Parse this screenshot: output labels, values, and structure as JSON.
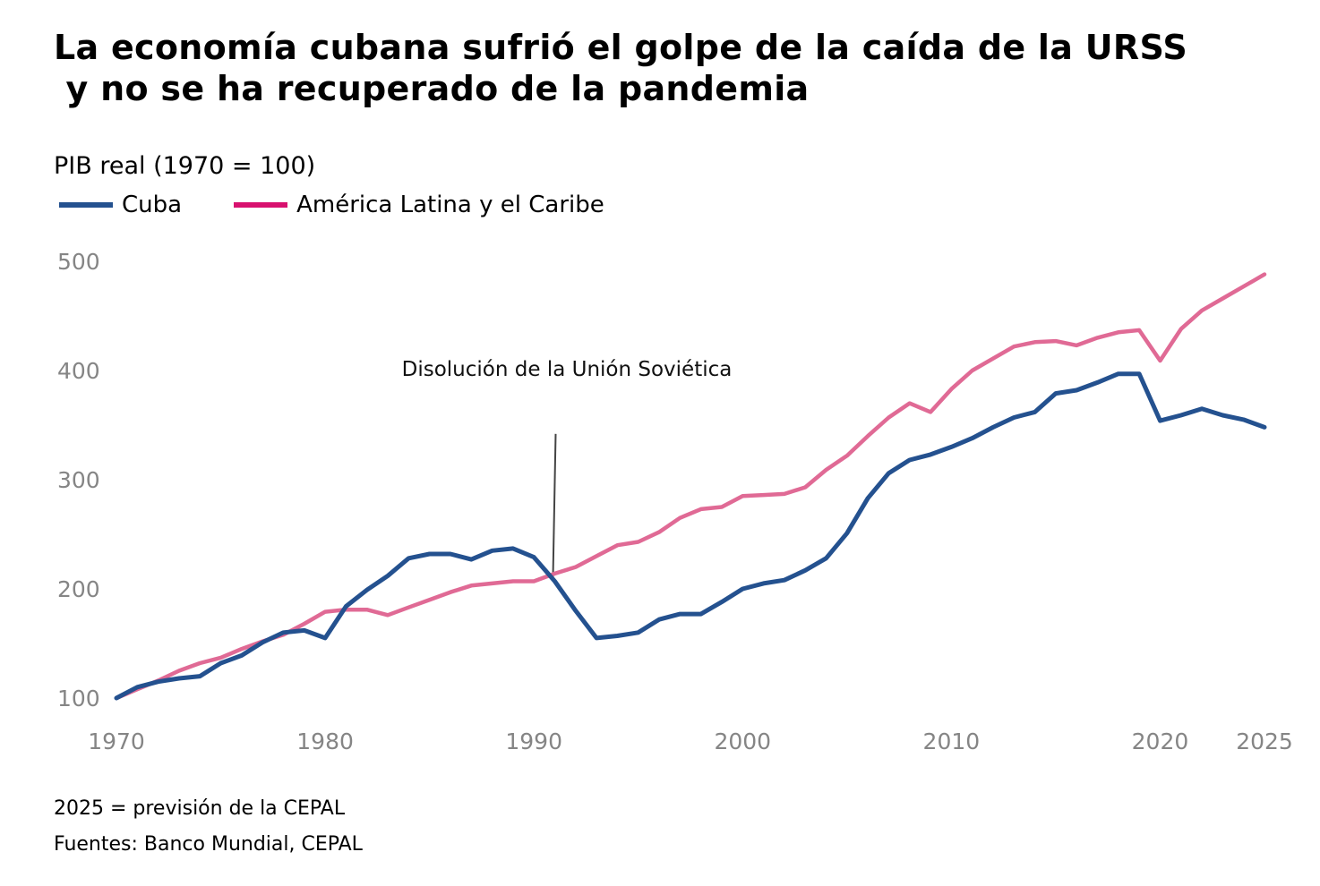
{
  "header": {
    "title": "La economía cubana sufrió el golpe de la caída de la URSS\n y no se ha recuperado de la pandemia",
    "subtitle": "PIB real (1970 = 100)"
  },
  "legend": [
    {
      "label": "Cuba",
      "color": "#24518f"
    },
    {
      "label": "América Latina y el Caribe",
      "color": "#d8116f"
    }
  ],
  "footer": {
    "note": "2025 = previsión de la CEPAL",
    "sources": "Fuentes: Banco Mundial, CEPAL"
  },
  "chart_data": {
    "type": "line",
    "title": "La economía cubana sufrió el golpe de la caída de la URSS y no se ha recuperado de la pandemia",
    "subtitle": "PIB real (1970 = 100)",
    "xlabel": "",
    "ylabel": "PIB real (1970 = 100)",
    "x": [
      1970,
      1971,
      1972,
      1973,
      1974,
      1975,
      1976,
      1977,
      1978,
      1979,
      1980,
      1981,
      1982,
      1983,
      1984,
      1985,
      1986,
      1987,
      1988,
      1989,
      1990,
      1991,
      1992,
      1993,
      1994,
      1995,
      1996,
      1997,
      1998,
      1999,
      2000,
      2001,
      2002,
      2003,
      2004,
      2005,
      2006,
      2007,
      2008,
      2009,
      2010,
      2011,
      2012,
      2013,
      2014,
      2015,
      2016,
      2017,
      2018,
      2019,
      2020,
      2021,
      2022,
      2023,
      2024,
      2025
    ],
    "xticks": [
      "1970",
      "1980",
      "1990",
      "2000",
      "2010",
      "2020",
      "2025"
    ],
    "xtick_values": [
      1970,
      1980,
      1990,
      2000,
      2010,
      2020,
      2025
    ],
    "yticks": [
      "100",
      "200",
      "300",
      "400",
      "500"
    ],
    "ytick_values": [
      100,
      200,
      300,
      400,
      500
    ],
    "xlim": [
      1970,
      2025
    ],
    "ylim": [
      100,
      500
    ],
    "grid": false,
    "legend_position": "top-left",
    "series": [
      {
        "name": "Cuba",
        "color": "#24518f",
        "values": [
          100,
          110,
          115,
          118,
          120,
          132,
          139,
          151,
          160,
          162,
          155,
          184,
          199,
          212,
          228,
          232,
          232,
          227,
          235,
          237,
          229,
          207,
          180,
          155,
          157,
          160,
          172,
          177,
          177,
          188,
          200,
          205,
          208,
          217,
          228,
          251,
          283,
          306,
          318,
          323,
          330,
          338,
          348,
          357,
          362,
          379,
          382,
          389,
          397,
          397,
          354,
          359,
          365,
          359,
          355,
          348
        ]
      },
      {
        "name": "América Latina y el Caribe",
        "color": "#e06a95",
        "values": [
          100,
          108,
          116,
          125,
          132,
          137,
          145,
          152,
          158,
          168,
          179,
          181,
          181,
          176,
          183,
          190,
          197,
          203,
          205,
          207,
          207,
          214,
          220,
          230,
          240,
          243,
          252,
          265,
          273,
          275,
          285,
          286,
          287,
          293,
          309,
          322,
          340,
          357,
          370,
          362,
          383,
          400,
          411,
          422,
          426,
          427,
          423,
          430,
          435,
          437,
          409,
          438,
          455,
          466,
          477,
          488
        ]
      }
    ],
    "annotations": [
      {
        "text": "Disolución de la Unión Soviética",
        "x": 1991,
        "y": 360
      }
    ]
  }
}
